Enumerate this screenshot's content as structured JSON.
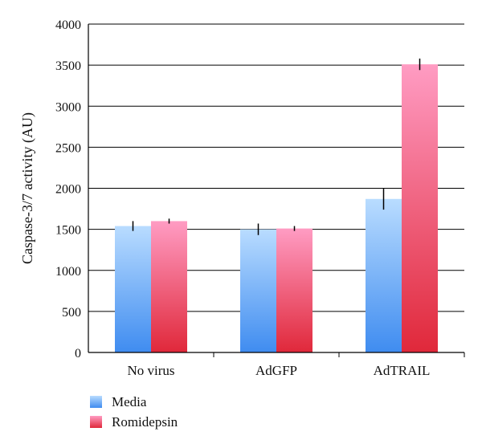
{
  "chart_data": {
    "type": "bar",
    "categories": [
      "No virus",
      "AdGFP",
      "AdTRAIL"
    ],
    "series": [
      {
        "name": "Media",
        "values": [
          1540,
          1500,
          1870
        ],
        "errors": [
          60,
          70,
          130
        ]
      },
      {
        "name": "Romidepsin",
        "values": [
          1600,
          1510,
          3510
        ],
        "errors": [
          30,
          30,
          70
        ]
      }
    ],
    "ylabel": "Caspase-3/7 activity (AU)",
    "xlabel": "",
    "ylim": [
      0,
      4000
    ],
    "yticks": [
      0,
      500,
      1000,
      1500,
      2000,
      2500,
      3000,
      3500,
      4000
    ],
    "grid": true,
    "legend_position": "bottom-left",
    "colors": {
      "Media": {
        "top": "#b9dcff",
        "bottom": "#3f8cf0"
      },
      "Romidepsin": {
        "top": "#ff9cc3",
        "bottom": "#e0283a"
      },
      "grid": "#000000",
      "error_bar": "#000000"
    }
  }
}
